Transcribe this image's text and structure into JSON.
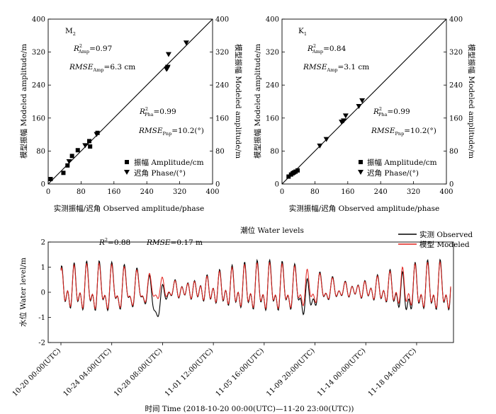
{
  "chart_data": [
    {
      "type": "scatter",
      "panel_label": "M",
      "panel_sub": "2",
      "x_ticks": [
        "0",
        "80",
        "160",
        "240",
        "320",
        "400"
      ],
      "y_ticks": [
        "0",
        "80",
        "160",
        "240",
        "320",
        "400"
      ],
      "right_ticks": [
        "0",
        "80",
        "160",
        "240",
        "320",
        "400"
      ],
      "xlim": [
        0,
        400
      ],
      "ylim": [
        0,
        400
      ],
      "xlabel": "实测振幅/迟角 Observed amplitude/phase",
      "ylabel": "模型振幅 Modeled amplitude/m",
      "right_ylabel": "模型振幅 Modeled amplitude/m",
      "stats": {
        "r2_amp": {
          "sym": "R",
          "sup": "2",
          "sub": "Amp",
          "value": "=0.97"
        },
        "rmse_amp": {
          "sym": "RMSE",
          "sub": "Amp",
          "value": "=6.3 cm"
        },
        "r2_pha": {
          "sym": "R",
          "sup": "2",
          "sub": "Pha",
          "value": "=0.99"
        },
        "rmse_pha": {
          "sym": "RMSE",
          "sub": "Pnp",
          "value": "=10.2(°)"
        }
      },
      "legend": {
        "amp": "振幅 Amplitude/cm",
        "pha": "迟角 Phase/(°)"
      },
      "series": [
        {
          "name": "振幅 Amplitude/cm",
          "marker": "square",
          "points": [
            [
              6,
              12
            ],
            [
              37,
              27
            ],
            [
              47,
              45
            ],
            [
              58,
              68
            ],
            [
              72,
              82
            ],
            [
              100,
              104
            ],
            [
              102,
              91
            ],
            [
              120,
              124
            ]
          ]
        },
        {
          "name": "迟角 Phase/(°)",
          "marker": "triangle-down",
          "points": [
            [
              51,
              54
            ],
            [
              90,
              93
            ],
            [
              118,
              120
            ],
            [
              288,
              278
            ],
            [
              290,
              280
            ],
            [
              291,
              283
            ],
            [
              293,
              314
            ],
            [
              336,
              342
            ]
          ]
        }
      ]
    },
    {
      "type": "scatter",
      "panel_label": "K",
      "panel_sub": "1",
      "x_ticks": [
        "0",
        "80",
        "160",
        "240",
        "320",
        "400"
      ],
      "y_ticks": [
        "0",
        "80",
        "160",
        "240",
        "320",
        "400"
      ],
      "right_ticks": [
        "0",
        "80",
        "160",
        "240",
        "320",
        "400"
      ],
      "xlim": [
        0,
        400
      ],
      "ylim": [
        0,
        400
      ],
      "xlabel": "实测振幅/迟角 Observed amplitude/phase",
      "ylabel": "模型振幅 Modeled amplitude/m",
      "right_ylabel": "模型振幅 Modeled amplitude/m",
      "stats": {
        "r2_amp": {
          "sym": "R",
          "sup": "2",
          "sub": "Amp",
          "value": "=0.84"
        },
        "rmse_amp": {
          "sym": "RMSE",
          "sub": "Amp",
          "value": "=3.1 cm"
        },
        "r2_pha": {
          "sym": "R",
          "sup": "2",
          "sub": "Pha",
          "value": "=0.99"
        },
        "rmse_pha": {
          "sym": "RMSE",
          "sub": "Pnp",
          "value": "=10.2(°)"
        }
      },
      "legend": {
        "amp": "振幅 Amplitude/cm",
        "pha": "迟角 Phase/(°)"
      },
      "series": [
        {
          "name": "振幅 Amplitude/cm",
          "marker": "square",
          "points": [
            [
              16,
              18
            ],
            [
              22,
              23
            ],
            [
              26,
              26
            ],
            [
              29,
              28
            ],
            [
              33,
              30
            ],
            [
              38,
              33
            ]
          ]
        },
        {
          "name": "迟角 Phase/(°)",
          "marker": "triangle-down",
          "points": [
            [
              92,
              92
            ],
            [
              108,
              108
            ],
            [
              145,
              150
            ],
            [
              150,
              153
            ],
            [
              155,
              165
            ],
            [
              187,
              188
            ],
            [
              195,
              202
            ]
          ]
        }
      ]
    },
    {
      "type": "line",
      "title": "潮位 Water levels",
      "xlabel": "时间 Time (2018-10-20  00:00(UTC)—11-20  23:00(UTC))",
      "ylabel": "水位 Water level/m",
      "ylim": [
        -2,
        2
      ],
      "y_ticks": [
        "-2",
        "-1",
        "0",
        "1",
        "2"
      ],
      "x_tick_labels": [
        "10-20 00:00(UTC)",
        "10-24 04:00(UTC)",
        "10-28 08:00(UTC)",
        "11-01 12:00(UTC)",
        "11-05 16:00(UTC)",
        "11-09 20:00(UTC)",
        "11-14 00:00(UTC)",
        "11-18 04:00(UTC)"
      ],
      "x_tick_days": [
        0,
        4.1667,
        8.3333,
        12.5,
        16.6667,
        20.8333,
        25,
        29.1667
      ],
      "x_range_days": [
        0,
        31.958
      ],
      "stats": {
        "r2": {
          "sym": "R",
          "sup": "2",
          "value": "=0.88"
        },
        "rmse": {
          "sym": "RMSE",
          "value": "=0.17 m"
        }
      },
      "series": [
        {
          "name": "实测 Observed",
          "color": "#000000"
        },
        {
          "name": "模型 Modeled",
          "color": "#e0201b"
        }
      ],
      "signal": {
        "samples_per_day": 24,
        "mean": 0.08,
        "k1_amp": 0.4,
        "k1_period_days": 0.99727,
        "m2_amp": 0.36,
        "m2_period_days": 0.51753,
        "s2_amp": 0.15,
        "s2_period_days": 0.5,
        "o1_amp": 0.33,
        "o1_period_days": 1.07581,
        "observed_dips": [
          {
            "day": 7.9,
            "depth": -0.7,
            "width_days": 0.5
          },
          {
            "day": 20.2,
            "depth": -0.45,
            "width_days": 0.5
          },
          {
            "day": 28.2,
            "depth": -0.3,
            "width_days": 0.5
          }
        ],
        "model_phase_offset": 0.12,
        "model_amp_scale": 0.92
      }
    }
  ]
}
